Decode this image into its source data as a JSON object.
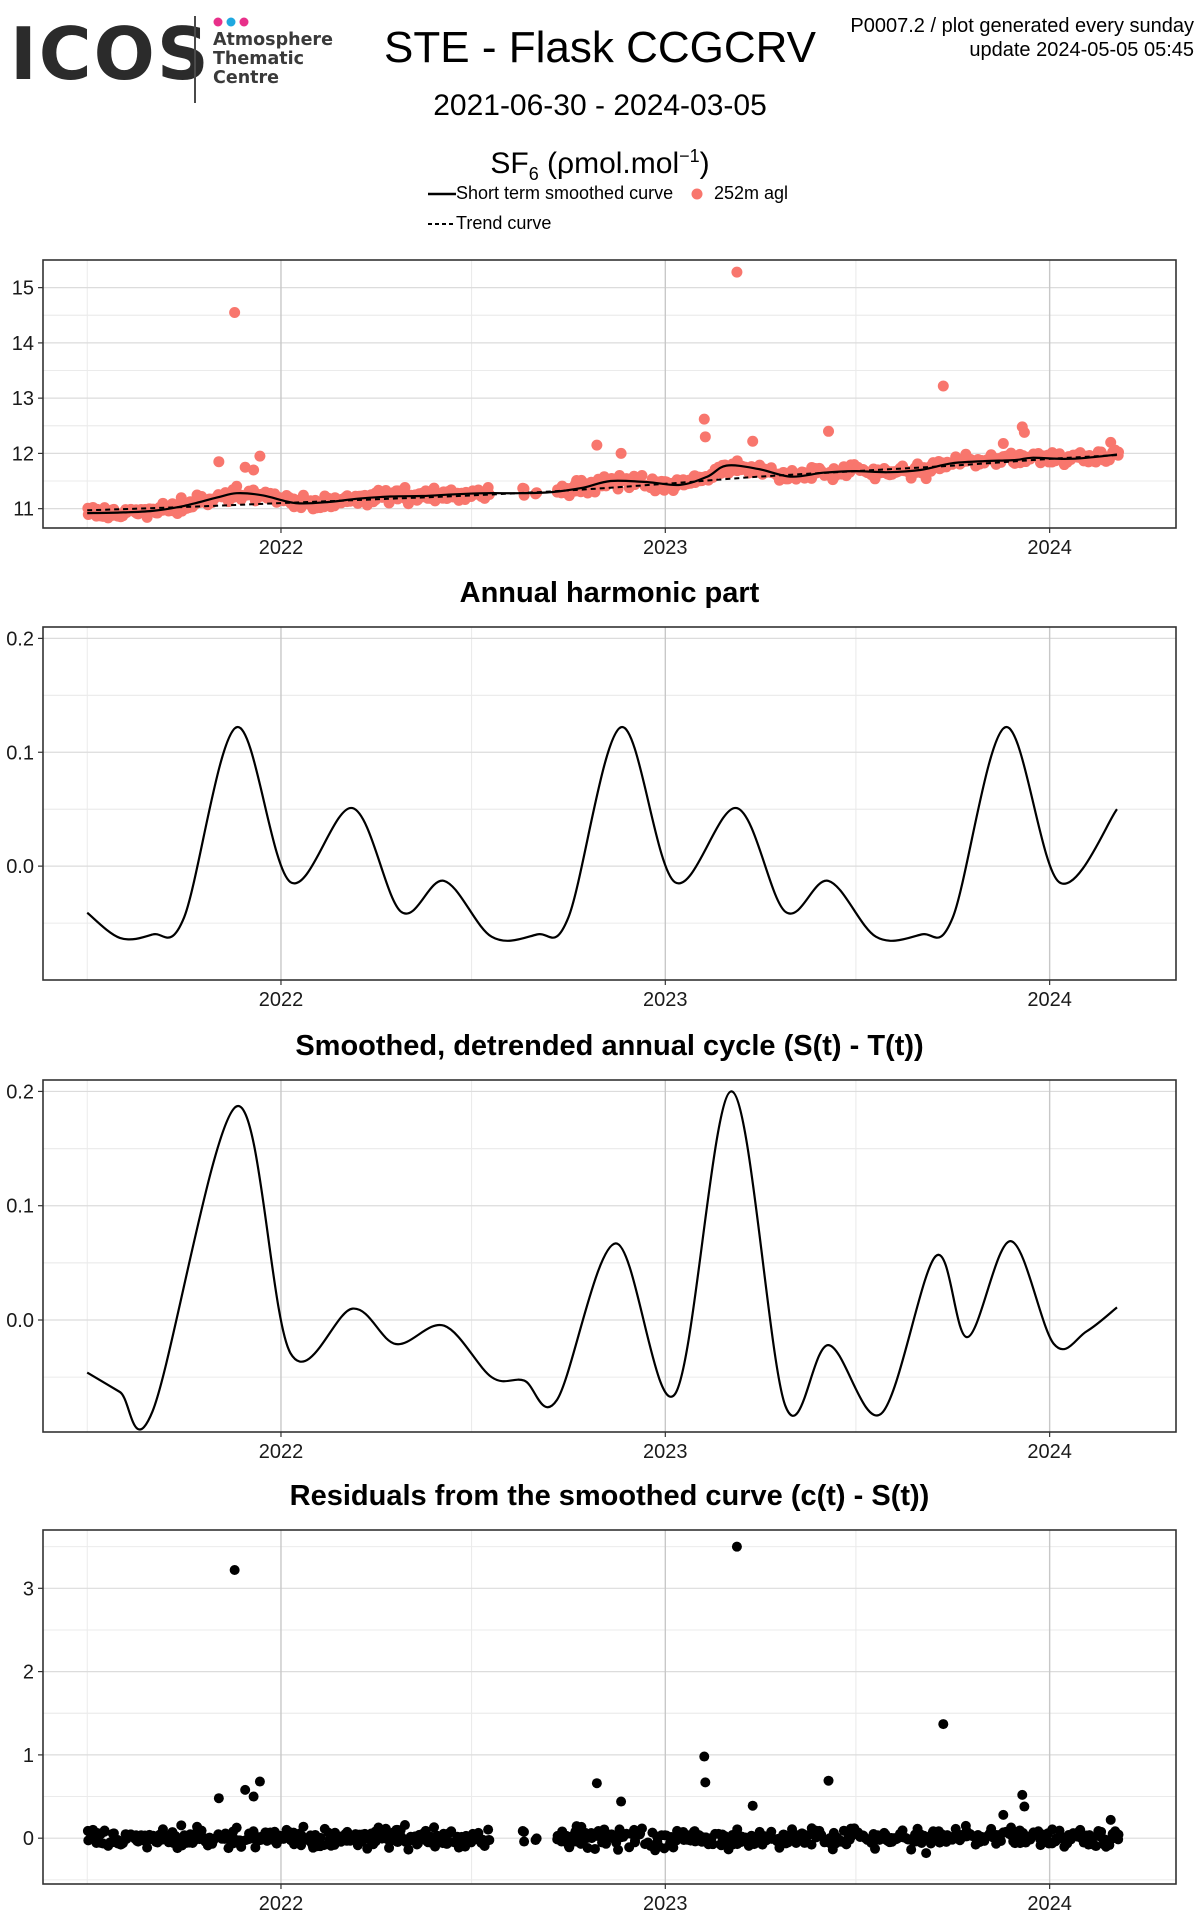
{
  "header": {
    "logo_text": "ICOS",
    "logo_subtitle_lines": [
      "Atmosphere",
      "Thematic",
      "Centre"
    ],
    "logo_dot_colors": [
      "#e8308a",
      "#1fa8e0",
      "#e8308a"
    ],
    "title": "STE - Flask CCGCRV",
    "date_range": "2021-06-30 - 2024-03-05",
    "unit_species": "SF",
    "unit_subscript": "6",
    "unit_rest": " (ρmol.mol",
    "unit_superscript": "−1",
    "unit_close": ")",
    "info_line1": "P0007.2 / plot generated every sunday",
    "info_line2": "update  2024-05-05 05:45"
  },
  "legend": {
    "smooth_label": "Short term smoothed curve",
    "trend_label": "Trend curve",
    "points_label": "252m agl",
    "point_color": "#f8766d"
  },
  "chart_data": [
    {
      "type": "scatter",
      "title": "",
      "xlabel": "",
      "ylabel": "",
      "x_ticks": [
        "2022",
        "2023",
        "2024"
      ],
      "x_range": [
        "2021-05-20",
        "2024-04-30"
      ],
      "ylim": [
        10.65,
        15.5
      ],
      "y_ticks": [
        "11",
        "12",
        "13",
        "14",
        "15"
      ],
      "grid": true,
      "series": [
        {
          "name": "252m agl",
          "kind": "points",
          "color": "#f8766d",
          "outliers": [
            {
              "x": "2021-11-18",
              "y": 14.55
            },
            {
              "x": "2023-03-10",
              "y": 15.28
            },
            {
              "x": "2023-09-22",
              "y": 13.22
            },
            {
              "x": "2023-02-07",
              "y": 12.62
            },
            {
              "x": "2023-02-08",
              "y": 12.3
            },
            {
              "x": "2023-03-25",
              "y": 12.22
            },
            {
              "x": "2023-06-05",
              "y": 12.4
            },
            {
              "x": "2022-10-28",
              "y": 12.15
            },
            {
              "x": "2022-11-20",
              "y": 12.0
            },
            {
              "x": "2021-11-28",
              "y": 11.75
            },
            {
              "x": "2021-11-03",
              "y": 11.85
            },
            {
              "x": "2021-12-12",
              "y": 11.95
            },
            {
              "x": "2021-12-06",
              "y": 11.7
            },
            {
              "x": "2023-12-06",
              "y": 12.48
            },
            {
              "x": "2023-12-08",
              "y": 12.38
            },
            {
              "x": "2023-11-18",
              "y": 12.18
            },
            {
              "x": "2024-02-28",
              "y": 12.2
            }
          ]
        },
        {
          "name": "Short term smoothed curve",
          "kind": "line",
          "color": "#000000",
          "x": [
            "2021-07-01",
            "2021-08-01",
            "2021-09-01",
            "2021-10-01",
            "2021-11-01",
            "2021-11-20",
            "2021-12-15",
            "2022-01-15",
            "2022-02-15",
            "2022-03-15",
            "2022-04-15",
            "2022-05-15",
            "2022-06-15",
            "2022-07-15",
            "2022-08-15",
            "2022-09-15",
            "2022-10-15",
            "2022-11-10",
            "2022-12-15",
            "2023-01-15",
            "2023-02-10",
            "2023-02-28",
            "2023-03-30",
            "2023-04-30",
            "2023-05-31",
            "2023-06-30",
            "2023-07-31",
            "2023-08-31",
            "2023-09-30",
            "2023-10-31",
            "2023-11-30",
            "2023-12-15",
            "2024-01-15",
            "2024-02-05",
            "2024-03-05"
          ],
          "y": [
            10.92,
            10.93,
            10.96,
            11.05,
            11.2,
            11.28,
            11.24,
            11.1,
            11.12,
            11.18,
            11.22,
            11.23,
            11.26,
            11.28,
            11.28,
            11.3,
            11.38,
            11.5,
            11.48,
            11.43,
            11.58,
            11.78,
            11.72,
            11.58,
            11.65,
            11.68,
            11.66,
            11.7,
            11.82,
            11.86,
            11.88,
            11.92,
            11.9,
            11.92,
            11.98
          ]
        },
        {
          "name": "Trend curve",
          "kind": "line-dashed",
          "color": "#000000",
          "x": [
            "2021-07-01",
            "2021-10-01",
            "2022-01-01",
            "2022-04-01",
            "2022-07-01",
            "2022-10-01",
            "2023-01-01",
            "2023-04-01",
            "2023-07-01",
            "2023-10-01",
            "2024-01-01",
            "2024-03-05"
          ],
          "y": [
            10.97,
            11.03,
            11.1,
            11.17,
            11.24,
            11.33,
            11.45,
            11.58,
            11.68,
            11.78,
            11.9,
            11.97
          ]
        }
      ]
    },
    {
      "type": "line",
      "title": "Annual harmonic part",
      "xlabel": "",
      "ylabel": "",
      "x_ticks": [
        "2022",
        "2023",
        "2024"
      ],
      "x_range": [
        "2021-05-20",
        "2024-04-30"
      ],
      "ylim": [
        -0.1,
        0.21
      ],
      "y_ticks": [
        "0.0",
        "0.1",
        "0.2"
      ],
      "grid": true,
      "series": [
        {
          "kind": "line",
          "color": "#000000",
          "x": [
            "2021-07-01",
            "2021-08-01",
            "2021-09-01",
            "2021-10-01",
            "2021-11-20",
            "2022-01-10",
            "2022-03-10",
            "2022-04-25",
            "2022-06-05",
            "2022-07-20",
            "2022-09-01",
            "2022-10-01",
            "2022-11-20",
            "2023-01-10",
            "2023-03-10",
            "2023-04-25",
            "2023-06-05",
            "2023-07-20",
            "2023-09-01",
            "2023-10-01",
            "2023-11-20",
            "2024-01-10",
            "2024-03-05"
          ],
          "y": [
            -0.041,
            -0.063,
            -0.06,
            -0.045,
            0.122,
            -0.014,
            0.051,
            -0.04,
            -0.013,
            -0.062,
            -0.06,
            -0.045,
            0.122,
            -0.014,
            0.051,
            -0.04,
            -0.013,
            -0.062,
            -0.06,
            -0.045,
            0.122,
            -0.014,
            0.05
          ]
        }
      ]
    },
    {
      "type": "line",
      "title": "Smoothed, detrended annual cycle (S(t) - T(t))",
      "xlabel": "",
      "ylabel": "",
      "x_ticks": [
        "2022",
        "2023",
        "2024"
      ],
      "x_range": [
        "2021-05-20",
        "2024-04-30"
      ],
      "ylim": [
        -0.098,
        0.21
      ],
      "y_ticks": [
        "0.0",
        "0.1",
        "0.2"
      ],
      "grid": true,
      "series": [
        {
          "kind": "line",
          "color": "#000000",
          "x": [
            "2021-07-01",
            "2021-08-01",
            "2021-09-01",
            "2021-11-20",
            "2022-01-10",
            "2022-03-10",
            "2022-04-20",
            "2022-06-05",
            "2022-07-20",
            "2022-08-20",
            "2022-09-20",
            "2022-11-15",
            "2023-01-10",
            "2023-03-05",
            "2023-04-25",
            "2023-06-05",
            "2023-07-25",
            "2023-09-15",
            "2023-10-15",
            "2023-11-25",
            "2024-01-05",
            "2024-02-05",
            "2024-03-05"
          ],
          "y": [
            -0.046,
            -0.063,
            -0.08,
            0.187,
            -0.029,
            0.01,
            -0.021,
            -0.005,
            -0.05,
            -0.053,
            -0.07,
            0.067,
            -0.065,
            0.2,
            -0.075,
            -0.022,
            -0.082,
            0.056,
            -0.015,
            0.069,
            -0.021,
            -0.01,
            0.011
          ]
        }
      ]
    },
    {
      "type": "scatter",
      "title": "Residuals from the smoothed curve (c(t) - S(t))",
      "xlabel": "",
      "ylabel": "",
      "x_ticks": [
        "2022",
        "2023",
        "2024"
      ],
      "x_range": [
        "2021-05-20",
        "2024-04-30"
      ],
      "ylim": [
        -0.55,
        3.7
      ],
      "y_ticks": [
        "0",
        "1",
        "2",
        "3"
      ],
      "grid": true,
      "series": [
        {
          "kind": "points",
          "color": "#000000",
          "outliers": [
            {
              "x": "2021-11-18",
              "y": 3.22
            },
            {
              "x": "2023-03-10",
              "y": 3.5
            },
            {
              "x": "2023-09-22",
              "y": 1.37
            },
            {
              "x": "2023-02-07",
              "y": 0.98
            },
            {
              "x": "2023-02-08",
              "y": 0.67
            },
            {
              "x": "2023-03-25",
              "y": 0.39
            },
            {
              "x": "2023-06-05",
              "y": 0.69
            },
            {
              "x": "2022-10-28",
              "y": 0.66
            },
            {
              "x": "2022-11-20",
              "y": 0.44
            },
            {
              "x": "2021-11-28",
              "y": 0.58
            },
            {
              "x": "2021-11-03",
              "y": 0.48
            },
            {
              "x": "2021-12-12",
              "y": 0.68
            },
            {
              "x": "2021-12-06",
              "y": 0.5
            },
            {
              "x": "2023-12-06",
              "y": 0.52
            },
            {
              "x": "2023-12-08",
              "y": 0.38
            },
            {
              "x": "2023-11-18",
              "y": 0.28
            },
            {
              "x": "2024-02-28",
              "y": 0.22
            }
          ]
        }
      ]
    }
  ]
}
